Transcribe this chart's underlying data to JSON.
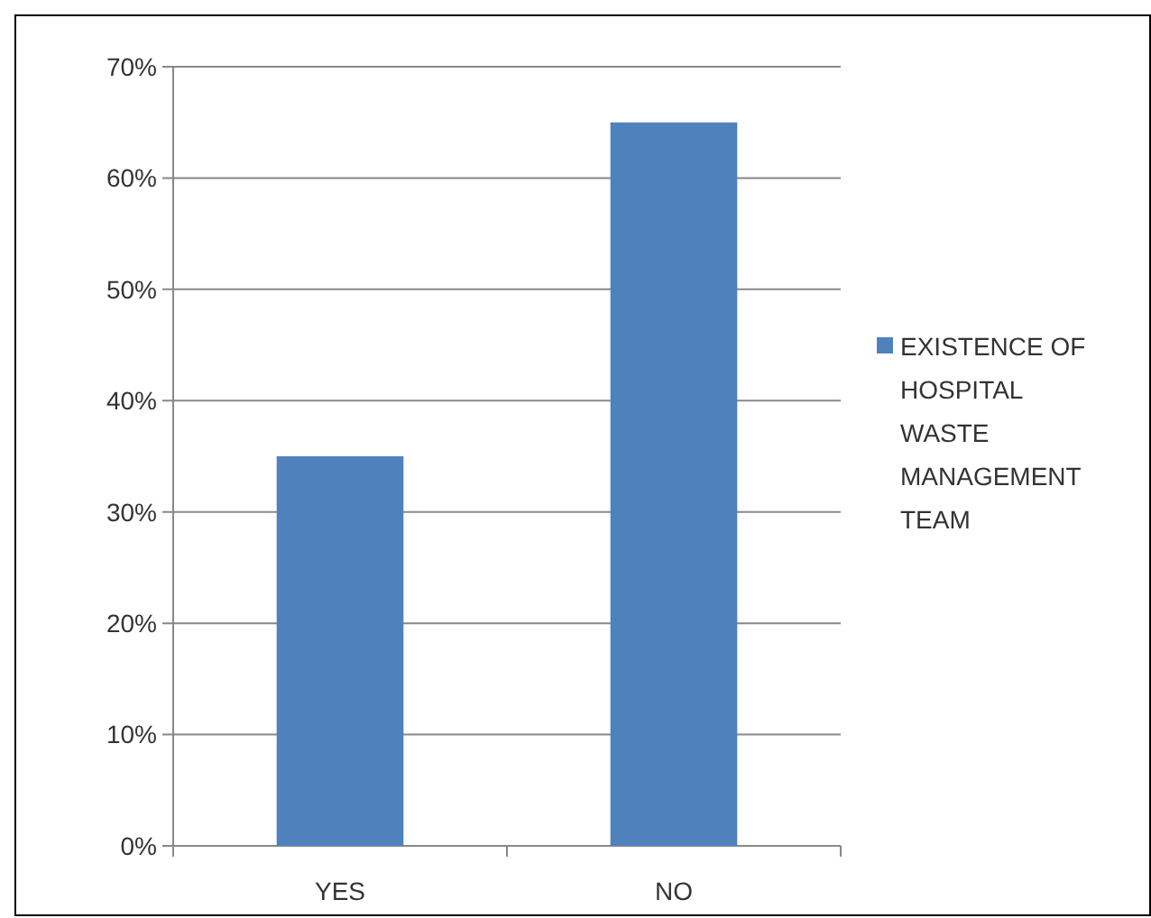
{
  "chart_data": {
    "type": "bar",
    "categories": [
      "YES",
      "NO"
    ],
    "series": [
      {
        "name": "EXISTENCE OF HOSPITAL WASTE MANAGEMENT TEAM",
        "color": "#4f81bd",
        "values": [
          35,
          65
        ]
      }
    ],
    "ylim": [
      0,
      70
    ],
    "yticks": [
      {
        "value": 0,
        "label": "0%"
      },
      {
        "value": 10,
        "label": "10%"
      },
      {
        "value": 20,
        "label": "20%"
      },
      {
        "value": 30,
        "label": "30%"
      },
      {
        "value": 40,
        "label": "40%"
      },
      {
        "value": 50,
        "label": "50%"
      },
      {
        "value": 60,
        "label": "60%"
      },
      {
        "value": 70,
        "label": "70%"
      }
    ],
    "grid": "y",
    "legend": "right"
  }
}
